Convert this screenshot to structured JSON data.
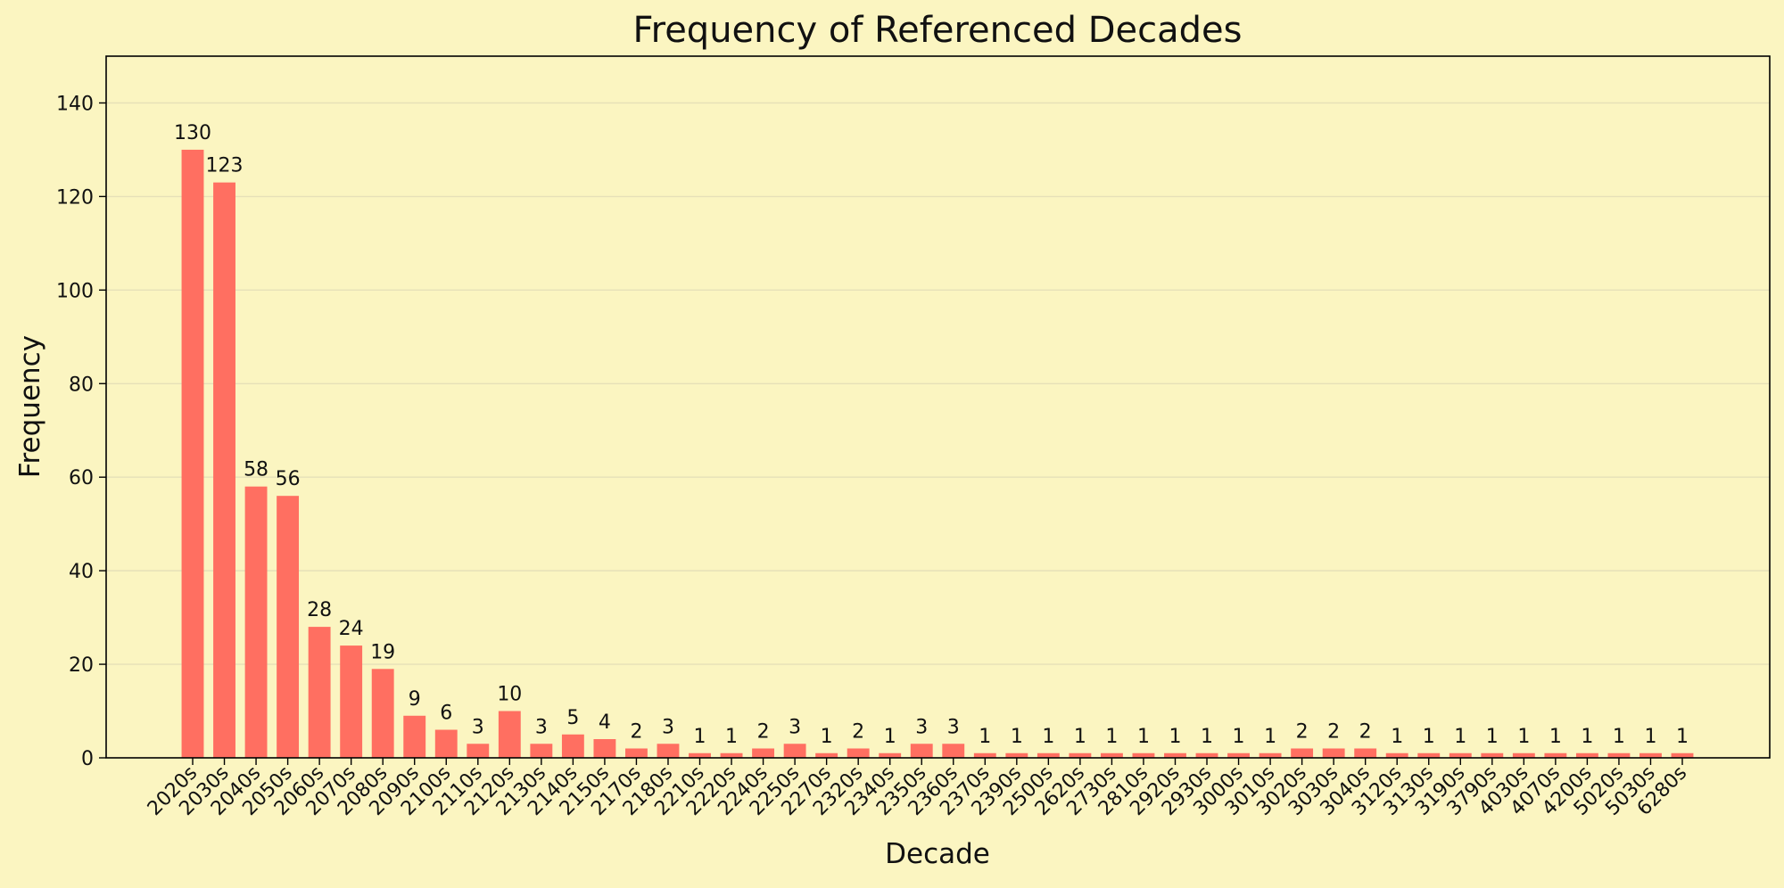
{
  "chart_data": {
    "type": "bar",
    "title": "Frequency of Referenced Decades",
    "xlabel": "Decade",
    "ylabel": "Frequency",
    "ylim": [
      0,
      150
    ],
    "yticks": [
      0,
      20,
      40,
      60,
      80,
      100,
      120,
      140
    ],
    "grid": "y",
    "bar_color": "#ff6f61",
    "background_color": "#fbf5c1",
    "grid_color": "#e6e0b8",
    "categories": [
      "2020s",
      "2030s",
      "2040s",
      "2050s",
      "2060s",
      "2070s",
      "2080s",
      "2090s",
      "2100s",
      "2110s",
      "2120s",
      "2130s",
      "2140s",
      "2150s",
      "2170s",
      "2180s",
      "2210s",
      "2220s",
      "2240s",
      "2250s",
      "2270s",
      "2320s",
      "2340s",
      "2350s",
      "2360s",
      "2370s",
      "2390s",
      "2500s",
      "2620s",
      "2730s",
      "2810s",
      "2920s",
      "2930s",
      "3000s",
      "3010s",
      "3020s",
      "3030s",
      "3040s",
      "3120s",
      "3130s",
      "3190s",
      "3790s",
      "4030s",
      "4070s",
      "4200s",
      "5020s",
      "5030s",
      "6280s"
    ],
    "values": [
      130,
      123,
      58,
      56,
      28,
      24,
      19,
      9,
      6,
      3,
      10,
      3,
      5,
      4,
      2,
      3,
      1,
      1,
      2,
      3,
      1,
      2,
      1,
      3,
      3,
      1,
      1,
      1,
      1,
      1,
      1,
      1,
      1,
      1,
      1,
      2,
      2,
      2,
      1,
      1,
      1,
      1,
      1,
      1,
      1,
      1,
      1,
      1
    ]
  }
}
